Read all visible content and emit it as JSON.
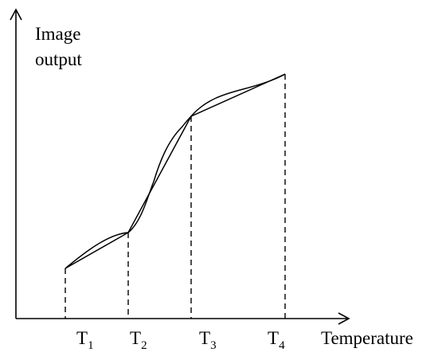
{
  "diagram": {
    "y_axis_label_lines": [
      "Image",
      "output"
    ],
    "x_axis_label": "Temperature",
    "ticks": [
      {
        "base": "T",
        "sub": "1"
      },
      {
        "base": "T",
        "sub": "2"
      },
      {
        "base": "T",
        "sub": "3"
      },
      {
        "base": "T",
        "sub": "4"
      }
    ]
  }
}
